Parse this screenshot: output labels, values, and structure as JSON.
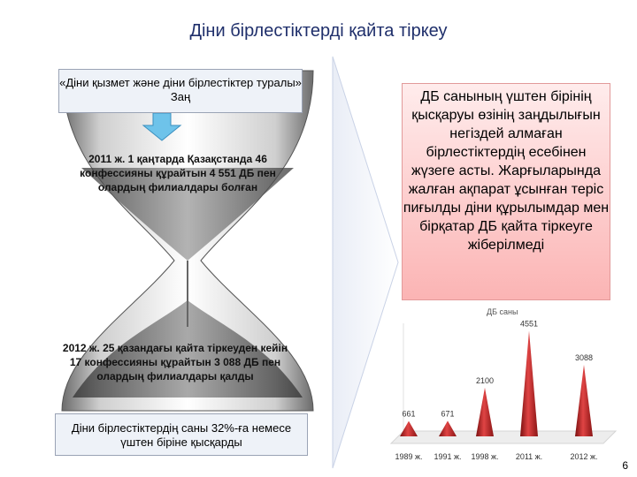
{
  "title": "Діни бірлестіктерді қайта тіркеу",
  "hourglass": {
    "law_text": "«Діни қызмет және діни бірлестіктер туралы» Заң",
    "text_2011": "2011 ж. 1 қаңтарда Қазақстанда 46 конфессияны құрайтын 4 551 ДБ пен олардың филиалдары болған",
    "text_2012": "2012 ж. 25 қазандағы қайта тіркеуден кейін 17 конфессияны құрайтын 3 088 ДБ пен олардың филиалдары қалды",
    "summary_text": "Діни бірлестіктердің саны 32%-ға немесе үштен біріне қысқарды"
  },
  "right_box": {
    "text": "ДБ санының үштен бірінің қысқаруы өзінің заңдылығын негіздей алмаған бірлестіктердің есебінен жүзеге асты. Жарғыларында жалған ақпарат ұсынған теріс пиғылды діни құрылымдар мен бірқатар ДБ қайта тіркеуге жіберілмеді"
  },
  "chart_data": {
    "type": "bar",
    "title": "ДБ саны",
    "categories": [
      "1989 ж.",
      "1991 ж.",
      "1998 ж.",
      "2011 ж.",
      "2012 ж."
    ],
    "values": [
      661,
      671,
      2100,
      4551,
      3088
    ],
    "ylim": [
      0,
      4800
    ],
    "grid": false,
    "color": "#c8282c"
  },
  "page_number": "6"
}
